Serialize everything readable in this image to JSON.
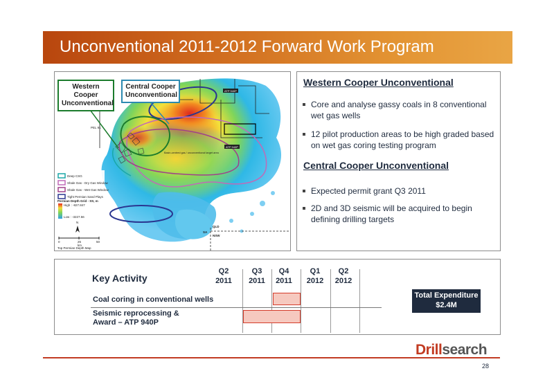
{
  "slide": {
    "title": "Unconventional 2011-2012 Forward Work Program",
    "page_number": "28"
  },
  "map": {
    "callouts": {
      "western": "Western Cooper Unconventional",
      "central": "Central Cooper Unconventional"
    },
    "labels": {
      "atp_940p": "ATP 940P",
      "atp_940p_2": "ATP 940P",
      "pel_91": "PEL 91",
      "qld": "QLD",
      "nsw": "NSW",
      "sa": "SA",
      "basin_note": "Basin-centred gas / unconventional target area"
    },
    "legend": {
      "items": [
        "Deep CSG",
        "Shale Gas - Dry Gas Window",
        "Shale Gas - Wet Gas Window",
        "Tight Permian Sand Plays"
      ],
      "grid_title": "Permian Depth Grid - SS, m",
      "high": "High : -827.847",
      "low": "Low : -3227.56",
      "north": "N",
      "scale": [
        "0",
        "25",
        "50",
        "km"
      ],
      "map_caption": "Top Permian Depth Map"
    },
    "colors": {
      "deep_csg": "#1aa7a7",
      "dry_gas": "#c06ab8",
      "wet_gas": "#a0408a",
      "tight_sand": "#2a3690"
    }
  },
  "western": {
    "heading": "Western Cooper Unconventional",
    "bullets": [
      "Core and analyse gassy coals in 8 conventional wet gas wells",
      "12 pilot production areas to be high graded based on wet gas coring testing program"
    ]
  },
  "central": {
    "heading": "Central Cooper Unconventional",
    "bullets": [
      "Expected permit grant Q3 2011",
      "2D and 3D seismic will be acquired to begin defining drilling targets"
    ]
  },
  "schedule": {
    "heading": "Key Activity",
    "quarters": [
      {
        "q": "Q2",
        "year": "2011"
      },
      {
        "q": "Q3",
        "year": "2011"
      },
      {
        "q": "Q4",
        "year": "2011"
      },
      {
        "q": "Q1",
        "year": "2012"
      },
      {
        "q": "Q2",
        "year": "2012"
      }
    ],
    "activities": [
      {
        "label": "Coal coring in conventional wells",
        "quarters": [
          "Q4 2011"
        ]
      },
      {
        "label_line1": "Seismic reprocessing &",
        "label_line2": "Award – ATP 940P",
        "quarters": [
          "Q3 2011",
          "Q4 2011"
        ]
      }
    ],
    "total_label": "Total Expenditure",
    "total_value": "$2.4M",
    "bar_color": "#f6c9bf",
    "bar_border": "#d43b2a"
  },
  "logo": {
    "part1": "Drill",
    "part2": "search"
  }
}
